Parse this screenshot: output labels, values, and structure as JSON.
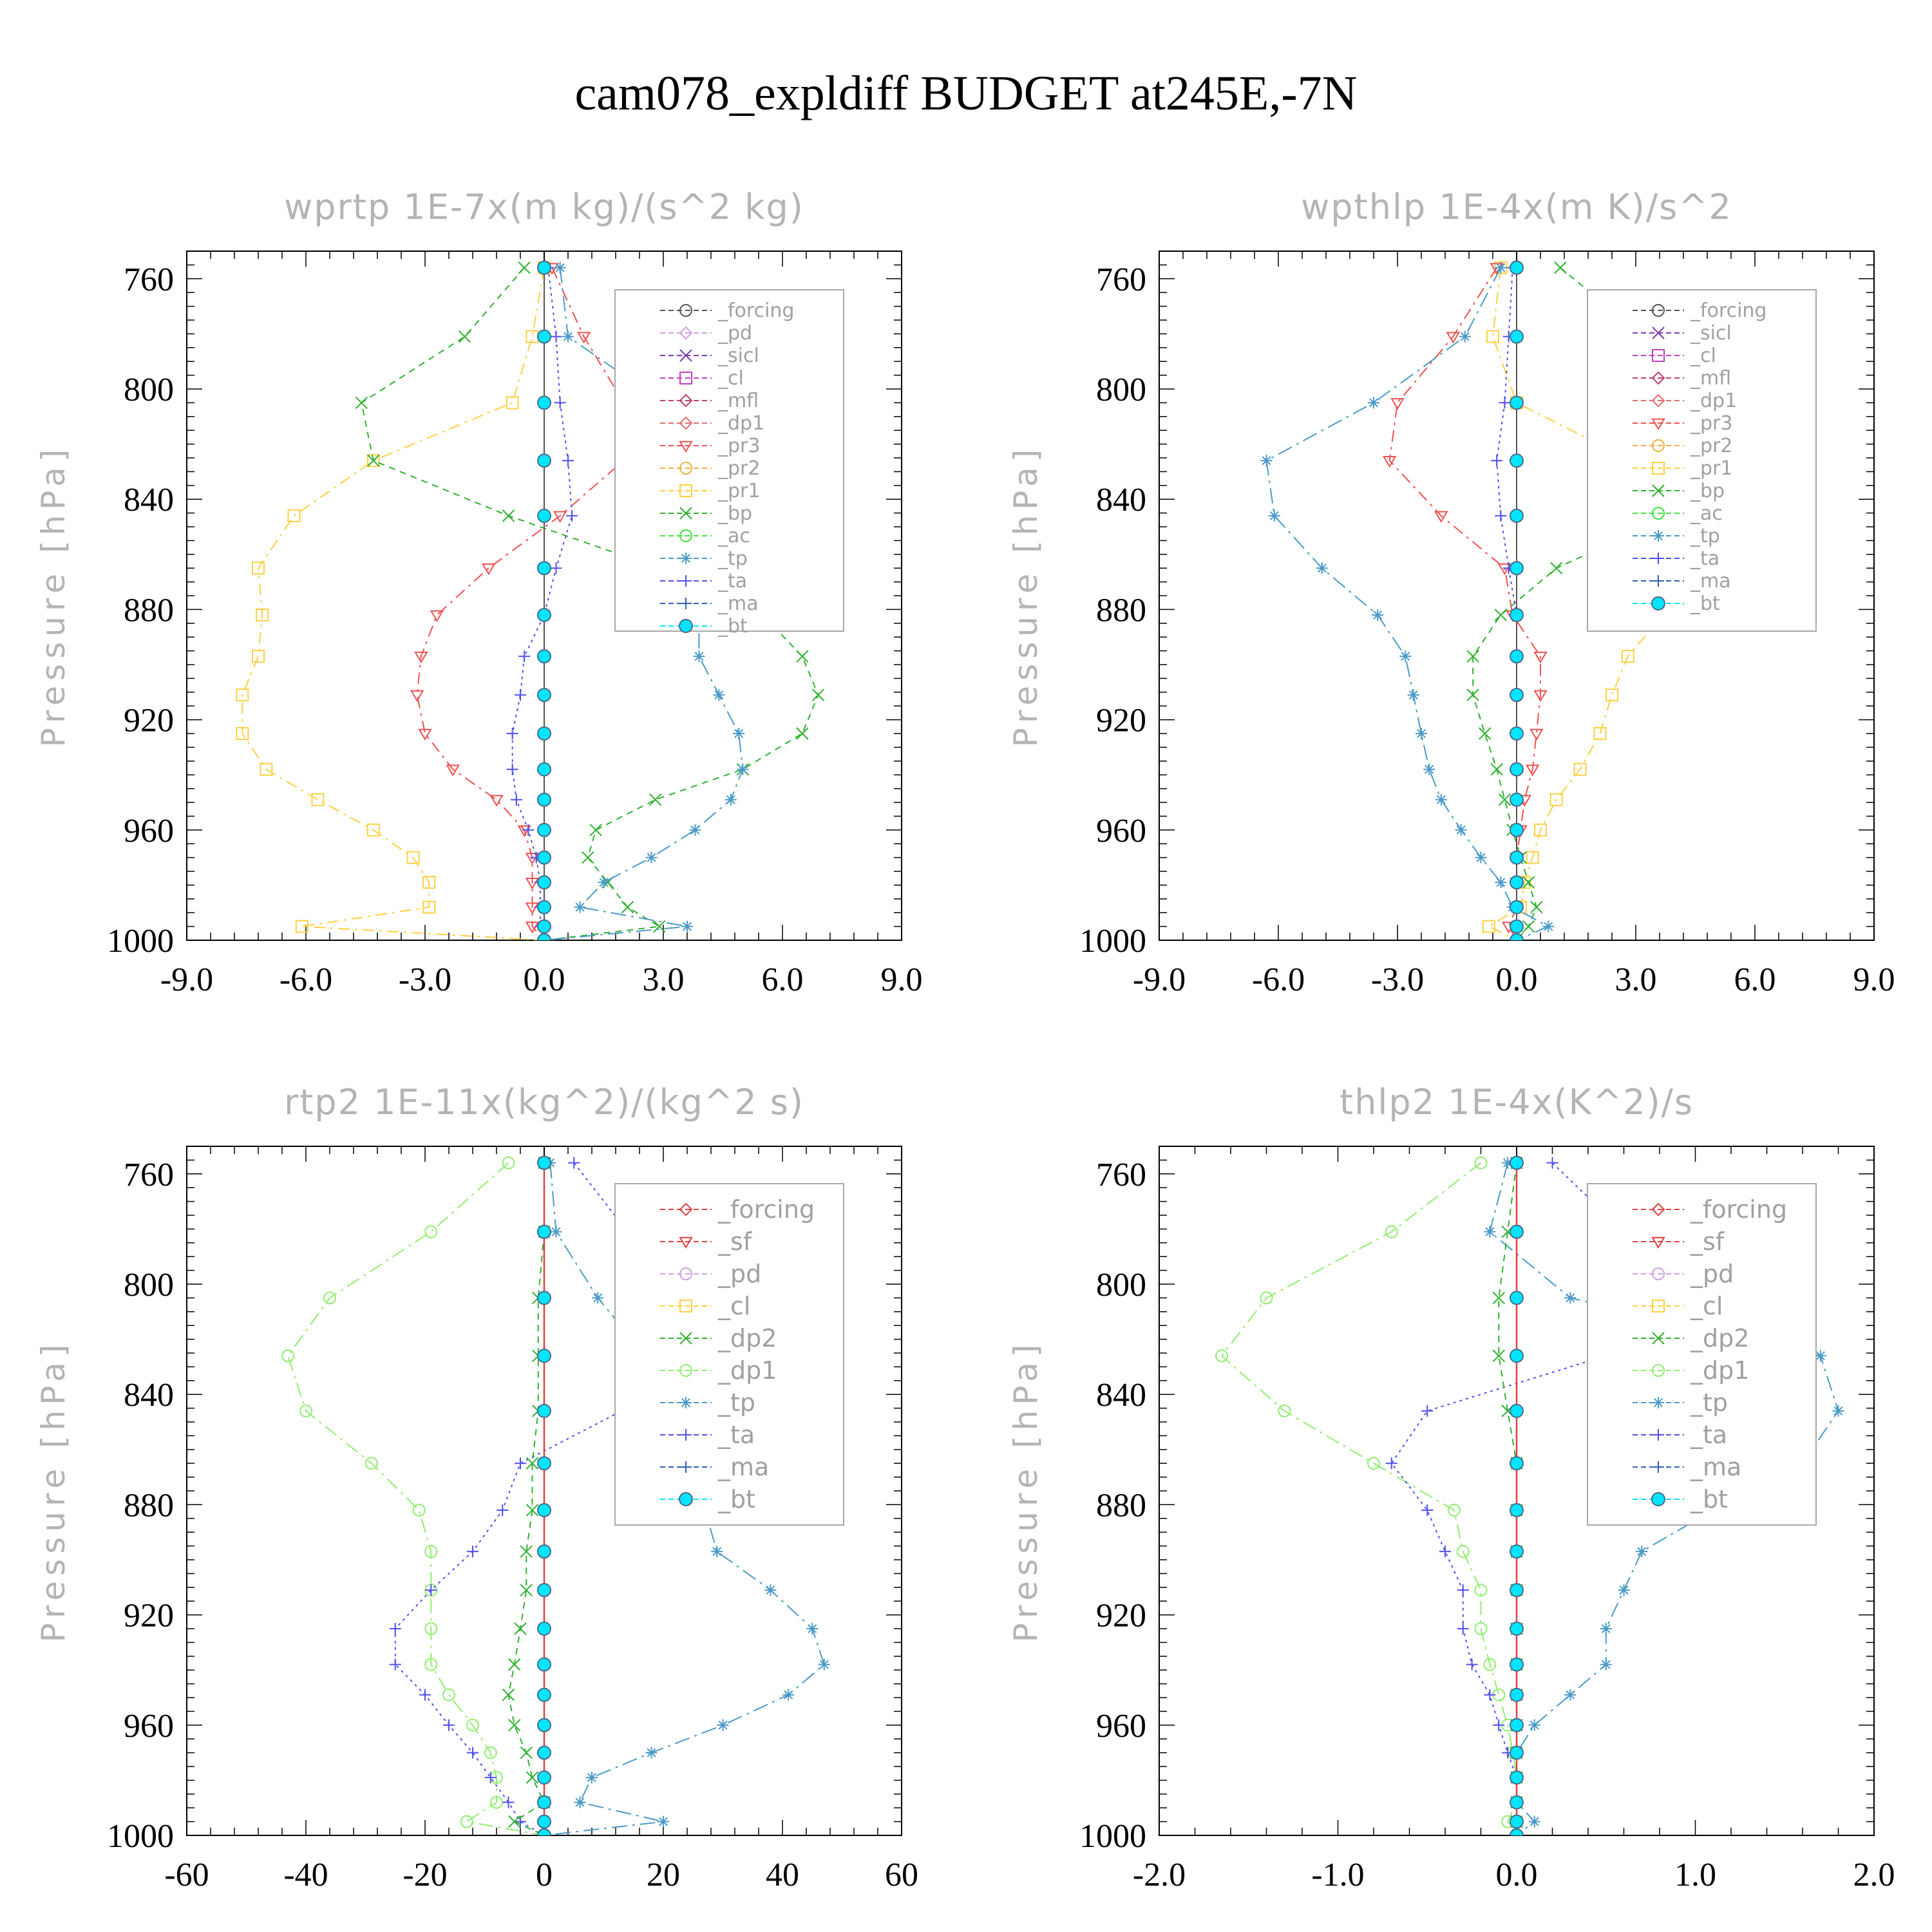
{
  "title": "cam078_expldiff  BUDGET at245E,-7N",
  "colors": {
    "forcing": "#555555",
    "forcing_r": "#e04040",
    "pd": "#d0a0e0",
    "sicl": "#7a3ab0",
    "cl": "#c040c0",
    "mfl": "#c04070",
    "dp1": "#e07070",
    "pr3": "#f05050",
    "pr2": "#f0b040",
    "pr1": "#ffd040",
    "bp": "#30b030",
    "ac": "#40e040",
    "tp": "#4a9ac8",
    "ta": "#5050f0",
    "ma": "#3060b0",
    "bt": "#00e5ff",
    "sf": "#e04040",
    "cl2": "#ffd040",
    "dp2": "#30b030",
    "dp1g": "#90ee70"
  },
  "chart_data": [
    {
      "type": "line",
      "title": "wprtp  1E-7x(m kg)/(s^2 kg)",
      "ylabel": "Pressure [hPa]",
      "xlim": [
        -9,
        9
      ],
      "ylim": [
        750,
        1000
      ],
      "xticks": [
        "-9.0",
        "-6.0",
        "-3.0",
        "0.0",
        "3.0",
        "6.0",
        "9.0"
      ],
      "yticks": [
        "760",
        "800",
        "840",
        "880",
        "920",
        "960",
        "1000"
      ],
      "pressure": [
        756,
        781,
        805,
        826,
        846,
        865,
        882,
        897,
        911,
        925,
        938,
        949,
        960,
        970,
        979,
        988,
        995,
        1000
      ],
      "legend": [
        "_forcing",
        "_pd",
        "_sicl",
        "_cl",
        "_mfl",
        "_dp1",
        "_pr3",
        "_pr2",
        "_pr1",
        "_bp",
        "_ac",
        "_tp",
        "_ta",
        "_ma",
        "_bt"
      ],
      "series": [
        {
          "name": "_pr1",
          "ckey": "pr1",
          "marker": "square",
          "dash": "18,8,4,8",
          "values": [
            0.0,
            -0.3,
            -0.8,
            -4.3,
            -6.3,
            -7.2,
            -7.1,
            -7.2,
            -7.6,
            -7.6,
            -7.0,
            -5.7,
            -4.3,
            -3.3,
            -2.9,
            -2.9,
            -6.1,
            0
          ]
        },
        {
          "name": "_pr3",
          "ckey": "pr3",
          "marker": "tridown",
          "dash": "18,8,4,8",
          "values": [
            0.2,
            1.0,
            2.0,
            2.0,
            0.4,
            -1.4,
            -2.7,
            -3.1,
            -3.2,
            -3.0,
            -2.3,
            -1.2,
            -0.5,
            -0.3,
            -0.3,
            -0.3,
            -0.3,
            0
          ]
        },
        {
          "name": "_bp",
          "ckey": "bp",
          "marker": "x",
          "dash": "10,8",
          "values": [
            -0.5,
            -2.0,
            -4.6,
            -4.3,
            -0.9,
            2.9,
            5.5,
            6.5,
            6.9,
            6.5,
            5.0,
            2.8,
            1.3,
            1.1,
            1.6,
            2.1,
            2.9,
            0
          ]
        },
        {
          "name": "_tp",
          "ckey": "tp",
          "marker": "asterisk",
          "dash": "24,8,4,8",
          "values": [
            0.4,
            0.6,
            3.0,
            5.7,
            5.9,
            5.2,
            3.9,
            3.9,
            4.4,
            4.9,
            5.0,
            4.7,
            3.8,
            2.7,
            1.5,
            0.9,
            3.6,
            0
          ]
        },
        {
          "name": "_ta",
          "ckey": "ta",
          "marker": "plus",
          "dash": "4,6",
          "values": [
            0.1,
            0.3,
            0.4,
            0.6,
            0.7,
            0.3,
            0.0,
            -0.5,
            -0.6,
            -0.8,
            -0.8,
            -0.7,
            -0.4,
            -0.2,
            -0.1,
            -0.1,
            -0.1,
            0
          ]
        },
        {
          "name": "_forcing",
          "ckey": "forcing",
          "marker": "circle",
          "dash": "",
          "values": [
            0,
            0,
            0,
            0,
            0,
            0,
            0,
            0,
            0,
            0,
            0,
            0,
            0,
            0,
            0,
            0,
            0,
            0
          ]
        },
        {
          "name": "_bt",
          "ckey": "bt",
          "marker": "dot",
          "dash": "",
          "values": [
            0,
            0,
            0,
            0,
            0,
            0,
            0,
            0,
            0,
            0,
            0,
            0,
            0,
            0,
            0,
            0,
            0,
            0
          ]
        }
      ]
    },
    {
      "type": "line",
      "title": "wpthlp  1E-4x(m K)/s^2",
      "ylabel": "Pressure [hPa]",
      "xlim": [
        -9,
        9
      ],
      "ylim": [
        750,
        1000
      ],
      "xticks": [
        "-9.0",
        "-6.0",
        "-3.0",
        "0.0",
        "3.0",
        "6.0",
        "9.0"
      ],
      "yticks": [
        "760",
        "800",
        "840",
        "880",
        "920",
        "960",
        "1000"
      ],
      "pressure": [
        756,
        781,
        805,
        826,
        846,
        865,
        882,
        897,
        911,
        925,
        938,
        949,
        960,
        970,
        979,
        988,
        995,
        1000
      ],
      "legend": [
        "_forcing",
        "_sicl",
        "_cl",
        "_mfl",
        "_dp1",
        "_pr3",
        "_pr2",
        "_pr1",
        "_bp",
        "_ac",
        "_tp",
        "_ta",
        "_ma",
        "_bt"
      ],
      "series": [
        {
          "name": "_pr1",
          "ckey": "pr1",
          "marker": "square",
          "dash": "18,8,4,8",
          "values": [
            -0.4,
            -0.6,
            0.0,
            2.9,
            3.9,
            4.0,
            3.7,
            2.8,
            2.4,
            2.1,
            1.6,
            1.0,
            0.6,
            0.4,
            0.2,
            0.1,
            -0.7,
            0
          ]
        },
        {
          "name": "_pr3",
          "ckey": "pr3",
          "marker": "tridown",
          "dash": "18,8,4,8",
          "values": [
            -0.5,
            -1.6,
            -3.0,
            -3.2,
            -1.9,
            -0.3,
            -0.1,
            0.6,
            0.6,
            0.5,
            0.4,
            0.2,
            0.1,
            0.0,
            0.0,
            0.0,
            -0.2,
            0
          ]
        },
        {
          "name": "_bp",
          "ckey": "bp",
          "marker": "x",
          "dash": "10,8",
          "values": [
            1.1,
            3.2,
            6.6,
            7.1,
            3.9,
            1.0,
            -0.4,
            -1.1,
            -1.1,
            -0.8,
            -0.5,
            -0.3,
            -0.1,
            0.1,
            0.3,
            0.5,
            0.3,
            0
          ]
        },
        {
          "name": "_tp",
          "ckey": "tp",
          "marker": "asterisk",
          "dash": "24,8,4,8",
          "values": [
            -0.4,
            -1.3,
            -3.6,
            -6.3,
            -6.1,
            -4.9,
            -3.5,
            -2.8,
            -2.6,
            -2.4,
            -2.2,
            -1.9,
            -1.4,
            -0.9,
            -0.4,
            -0.1,
            0.8,
            0
          ]
        },
        {
          "name": "_ta",
          "ckey": "ta",
          "marker": "plus",
          "dash": "4,6",
          "values": [
            -0.1,
            -0.2,
            -0.3,
            -0.5,
            -0.4,
            -0.2,
            0.0,
            0.0,
            0.0,
            0.0,
            0.0,
            0.0,
            0.0,
            0.0,
            0.0,
            0.0,
            0.0,
            0
          ]
        },
        {
          "name": "_forcing",
          "ckey": "forcing",
          "marker": "circle",
          "dash": "",
          "values": [
            0,
            0,
            0,
            0,
            0,
            0,
            0,
            0,
            0,
            0,
            0,
            0,
            0,
            0,
            0,
            0,
            0,
            0
          ]
        },
        {
          "name": "_bt",
          "ckey": "bt",
          "marker": "dot",
          "dash": "",
          "values": [
            0,
            0,
            0,
            0,
            0,
            0,
            0,
            0,
            0,
            0,
            0,
            0,
            0,
            0,
            0,
            0,
            0,
            0
          ]
        }
      ]
    },
    {
      "type": "line",
      "title": "rtp2  1E-11x(kg^2)/(kg^2 s)",
      "ylabel": "Pressure [hPa]",
      "xlim": [
        -60,
        60
      ],
      "ylim": [
        750,
        1000
      ],
      "xticks": [
        "-60",
        "-40",
        "-20",
        "0",
        "20",
        "40",
        "60"
      ],
      "yticks": [
        "760",
        "800",
        "840",
        "880",
        "920",
        "960",
        "1000"
      ],
      "pressure": [
        756,
        781,
        805,
        826,
        846,
        865,
        882,
        897,
        911,
        925,
        938,
        949,
        960,
        970,
        979,
        988,
        995,
        1000
      ],
      "legend": [
        "_forcing",
        "_sf",
        "_pd",
        "_cl",
        "_dp2",
        "_dp1",
        "_tp",
        "_ta",
        "_ma",
        "_bt"
      ],
      "series": [
        {
          "name": "_dp1",
          "ckey": "dp1g",
          "marker": "circle",
          "dash": "22,8,4,8",
          "values": [
            -6,
            -19,
            -36,
            -43,
            -40,
            -29,
            -21,
            -19,
            -19,
            -19,
            -19,
            -16,
            -12,
            -9,
            -8,
            -8,
            -13,
            0
          ]
        },
        {
          "name": "_ta",
          "ckey": "ta",
          "marker": "plus",
          "dash": "4,6",
          "values": [
            5,
            14,
            26,
            25,
            13,
            -4,
            -7,
            -12,
            -19,
            -25,
            -25,
            -20,
            -16,
            -12,
            -9,
            -6,
            -4,
            0
          ]
        },
        {
          "name": "_tp",
          "ckey": "tp",
          "marker": "asterisk",
          "dash": "24,8,4,8",
          "values": [
            1,
            2,
            9,
            17,
            31,
            33,
            27,
            29,
            38,
            45,
            47,
            41,
            30,
            18,
            8,
            6,
            20,
            0
          ]
        },
        {
          "name": "_dp2",
          "ckey": "dp2",
          "marker": "x",
          "dash": "10,8",
          "values": [
            0,
            0,
            -1,
            -1,
            -1,
            -2,
            -2,
            -3,
            -3,
            -4,
            -5,
            -6,
            -5,
            -3,
            -2,
            0,
            -5,
            0
          ]
        },
        {
          "name": "_forcing",
          "ckey": "forcing_r",
          "marker": "diamond",
          "dash": "",
          "values": [
            0,
            0,
            0,
            0,
            0,
            0,
            0,
            0,
            0,
            0,
            0,
            0,
            0,
            0,
            0,
            0,
            0,
            0
          ]
        },
        {
          "name": "_bt",
          "ckey": "bt",
          "marker": "dot",
          "dash": "",
          "values": [
            0,
            0,
            0,
            0,
            0,
            0,
            0,
            0,
            0,
            0,
            0,
            0,
            0,
            0,
            0,
            0,
            0,
            0
          ]
        }
      ]
    },
    {
      "type": "line",
      "title": "thlp2  1E-4x(K^2)/s",
      "ylabel": "Pressure [hPa]",
      "xlim": [
        -2,
        2
      ],
      "ylim": [
        750,
        1000
      ],
      "xticks": [
        "-2.0",
        "-1.0",
        "0.0",
        "1.0",
        "2.0"
      ],
      "yticks": [
        "760",
        "800",
        "840",
        "880",
        "920",
        "960",
        "1000"
      ],
      "pressure": [
        756,
        781,
        805,
        826,
        846,
        865,
        882,
        897,
        911,
        925,
        938,
        949,
        960,
        970,
        979,
        988,
        995,
        1000
      ],
      "legend": [
        "_forcing",
        "_sf",
        "_pd",
        "_cl",
        "_dp2",
        "_dp1",
        "_tp",
        "_ta",
        "_ma",
        "_bt"
      ],
      "series": [
        {
          "name": "_dp1",
          "ckey": "dp1g",
          "marker": "circle",
          "dash": "22,8,4,8",
          "values": [
            -0.2,
            -0.7,
            -1.4,
            -1.65,
            -1.3,
            -0.8,
            -0.35,
            -0.3,
            -0.2,
            -0.2,
            -0.15,
            -0.1,
            -0.05,
            -0.02,
            0.0,
            0.0,
            -0.05,
            0
          ]
        },
        {
          "name": "_ta",
          "ckey": "ta",
          "marker": "plus",
          "dash": "4,6",
          "values": [
            0.2,
            0.6,
            1.1,
            0.5,
            -0.5,
            -0.7,
            -0.5,
            -0.4,
            -0.3,
            -0.3,
            -0.25,
            -0.15,
            -0.1,
            -0.05,
            0,
            0,
            0,
            0
          ]
        },
        {
          "name": "_tp",
          "ckey": "tp",
          "marker": "asterisk",
          "dash": "24,8,4,8",
          "values": [
            -0.05,
            -0.15,
            0.3,
            1.7,
            1.8,
            1.6,
            1.1,
            0.7,
            0.6,
            0.5,
            0.5,
            0.3,
            0.1,
            0.0,
            0.0,
            0.0,
            0.1,
            0
          ]
        },
        {
          "name": "_dp2",
          "ckey": "dp2",
          "marker": "x",
          "dash": "10,8",
          "values": [
            0,
            -0.05,
            -0.1,
            -0.1,
            -0.05,
            0,
            0,
            0,
            0,
            0,
            0,
            0,
            0,
            0,
            0,
            0,
            0,
            0
          ]
        },
        {
          "name": "_forcing",
          "ckey": "forcing_r",
          "marker": "diamond",
          "dash": "",
          "values": [
            0,
            0,
            0,
            0,
            0,
            0,
            0,
            0,
            0,
            0,
            0,
            0,
            0,
            0,
            0,
            0,
            0,
            0
          ]
        },
        {
          "name": "_bt",
          "ckey": "bt",
          "marker": "dot",
          "dash": "",
          "values": [
            0,
            0,
            0,
            0,
            0,
            0,
            0,
            0,
            0,
            0,
            0,
            0,
            0,
            0,
            0,
            0,
            0,
            0
          ]
        }
      ]
    }
  ]
}
